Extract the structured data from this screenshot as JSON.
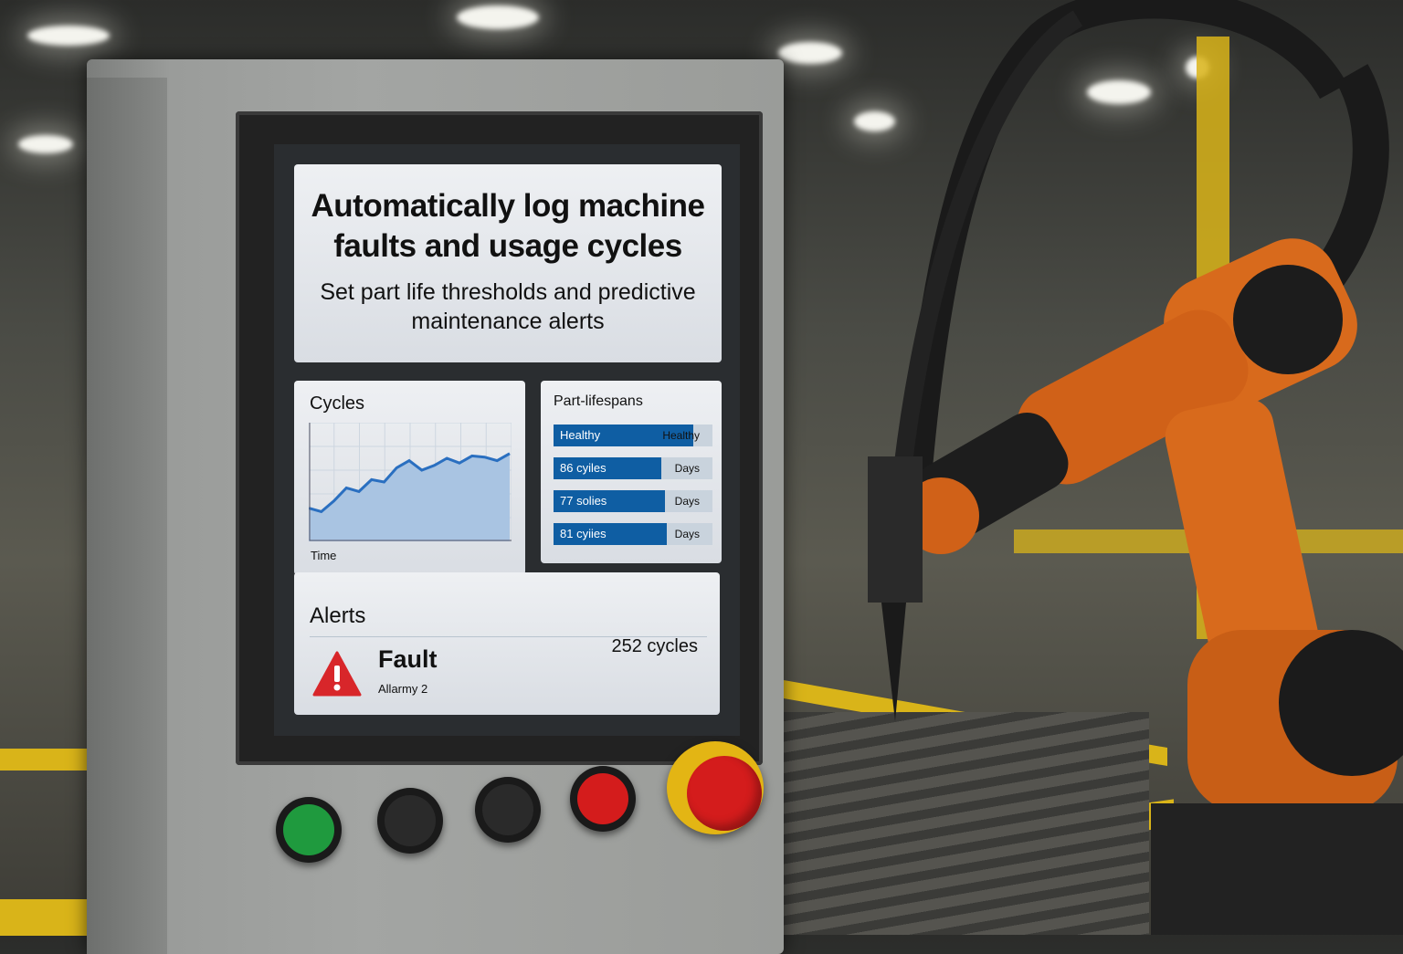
{
  "screen": {
    "headline": "Automatically log machine faults and usage cycles",
    "subheadline": "Set part life thresholds and predictive maintenance alerts",
    "cycles_panel": {
      "title": "Cycles",
      "x_label": "Time",
      "chart_data": {
        "type": "area",
        "values": [
          28,
          25,
          34,
          45,
          42,
          52,
          50,
          62,
          68,
          60,
          64,
          70,
          66,
          72,
          71,
          68,
          74
        ],
        "grid": true,
        "color": "#2a6fc0"
      }
    },
    "lifespans_panel": {
      "title": "Part-lifespans",
      "rows": [
        {
          "bar_label": "Healthy",
          "right_label": "Healthy",
          "fill_percent": 85
        },
        {
          "bar_label": "86 cyiles",
          "right_label": "Days",
          "fill_percent": 60
        },
        {
          "bar_label": "77 solies",
          "right_label": "Days",
          "fill_percent": 63
        },
        {
          "bar_label": "81 cyiies",
          "right_label": "Days",
          "fill_percent": 64
        }
      ]
    },
    "alerts_panel": {
      "title": "Alerts",
      "alert_title": "Fault",
      "alert_subtitle": "Allarmy 2",
      "alert_count": "252 cycles",
      "alert_icon": "warning-triangle-icon",
      "alert_color": "#d8262a"
    }
  },
  "buttons": [
    {
      "name": "green-button",
      "color": "#1f9a3e"
    },
    {
      "name": "black-button-1",
      "color": "#2a2a2a"
    },
    {
      "name": "black-button-2",
      "color": "#2a2a2a"
    },
    {
      "name": "red-button",
      "color": "#d41c1c"
    },
    {
      "name": "emergency-stop-button",
      "color": "#d41c1c",
      "ring": "#e3b514"
    }
  ]
}
